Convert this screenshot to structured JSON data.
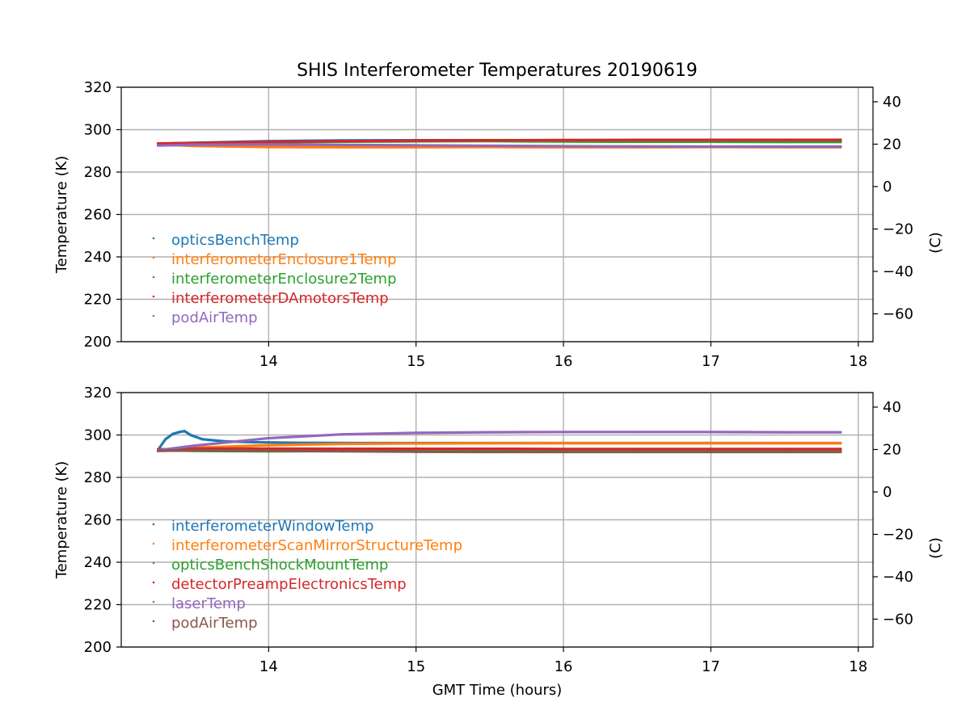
{
  "figure_title": "SHIS Interferometer Temperatures 20190619",
  "chart_data": [
    {
      "type": "scatter",
      "ylabel": "Temperature (K)",
      "right_ylabel": "(C)",
      "xlabel": "",
      "xlim": [
        13.0,
        18.1
      ],
      "ylim": [
        200,
        320
      ],
      "x_ticks": [
        14,
        15,
        16,
        17,
        18
      ],
      "y_ticks": [
        200,
        220,
        240,
        260,
        280,
        300,
        320
      ],
      "right_ticks": [
        -60,
        -40,
        -20,
        0,
        20,
        40
      ],
      "grid": true,
      "legend_position": "center-left",
      "series": [
        {
          "name": "opticsBenchTemp",
          "color": "#1f77b4",
          "x": [
            13.25,
            13.5,
            14.0,
            14.5,
            15.0,
            15.5,
            16.0,
            16.5,
            17.0,
            17.5,
            17.88
          ],
          "y": [
            293.4,
            293.8,
            294.6,
            294.9,
            295.0,
            295.0,
            294.9,
            294.8,
            294.8,
            294.7,
            294.7
          ]
        },
        {
          "name": "interferometerEnclosure1Temp",
          "color": "#ff7f0e",
          "x": [
            13.25,
            13.5,
            14.0,
            14.5,
            15.0,
            15.5,
            16.0,
            16.5,
            17.0,
            17.5,
            17.88
          ],
          "y": [
            293.0,
            292.3,
            291.8,
            291.7,
            291.7,
            291.8,
            291.7,
            291.7,
            291.8,
            291.7,
            291.7
          ]
        },
        {
          "name": "interferometerEnclosure2Temp",
          "color": "#2ca02c",
          "x": [
            13.25,
            13.5,
            14.0,
            14.5,
            15.0,
            15.5,
            16.0,
            16.5,
            17.0,
            17.5,
            17.88
          ],
          "y": [
            293.2,
            293.5,
            294.0,
            294.3,
            294.5,
            294.6,
            294.4,
            294.3,
            294.3,
            294.2,
            294.2
          ]
        },
        {
          "name": "interferometerDAmotorsTemp",
          "color": "#d62728",
          "x": [
            13.25,
            13.5,
            14.0,
            14.5,
            15.0,
            15.5,
            16.0,
            16.5,
            17.0,
            17.5,
            17.88
          ],
          "y": [
            293.5,
            293.7,
            294.2,
            294.6,
            294.8,
            295.0,
            295.1,
            295.2,
            295.2,
            295.2,
            295.2
          ]
        },
        {
          "name": "podAirTemp",
          "color": "#9467bd",
          "x": [
            13.25,
            13.5,
            14.0,
            14.5,
            15.0,
            15.5,
            16.0,
            16.5,
            17.0,
            17.5,
            17.88
          ],
          "y": [
            292.5,
            292.9,
            293.0,
            292.8,
            292.6,
            292.4,
            292.2,
            292.1,
            292.0,
            292.0,
            292.0
          ]
        }
      ]
    },
    {
      "type": "scatter",
      "ylabel": "Temperature (K)",
      "right_ylabel": "(C)",
      "xlabel": "GMT Time (hours)",
      "xlim": [
        13.0,
        18.1
      ],
      "ylim": [
        200,
        320
      ],
      "x_ticks": [
        14,
        15,
        16,
        17,
        18
      ],
      "y_ticks": [
        200,
        220,
        240,
        260,
        280,
        300,
        320
      ],
      "right_ticks": [
        -60,
        -40,
        -20,
        0,
        20,
        40
      ],
      "grid": true,
      "legend_position": "center-left",
      "series": [
        {
          "name": "interferometerWindowTemp",
          "color": "#1f77b4",
          "x": [
            13.25,
            13.3,
            13.35,
            13.4,
            13.43,
            13.47,
            13.55,
            13.7,
            13.9,
            14.2,
            14.6,
            15.0,
            15.5,
            16.0,
            16.5,
            17.0,
            17.5,
            17.88
          ],
          "y": [
            293.0,
            298.0,
            300.5,
            301.5,
            301.8,
            300.0,
            298.0,
            297.0,
            296.6,
            296.3,
            296.2,
            296.2,
            296.2,
            296.2,
            296.2,
            296.2,
            296.2,
            296.2
          ]
        },
        {
          "name": "interferometerScanMirrorStructureTemp",
          "color": "#ff7f0e",
          "x": [
            13.25,
            13.5,
            14.0,
            14.5,
            15.0,
            15.5,
            16.0,
            16.5,
            17.0,
            17.5,
            17.88
          ],
          "y": [
            293.0,
            294.0,
            295.2,
            295.8,
            296.0,
            296.1,
            296.1,
            296.1,
            296.1,
            296.1,
            296.1
          ]
        },
        {
          "name": "opticsBenchShockMountTemp",
          "color": "#2ca02c",
          "x": [
            13.25,
            13.5,
            14.0,
            14.5,
            15.0,
            15.5,
            16.0,
            16.5,
            17.0,
            17.5,
            17.88
          ],
          "y": [
            292.8,
            292.5,
            292.3,
            292.4,
            292.5,
            292.6,
            292.6,
            292.6,
            292.6,
            292.6,
            292.6
          ]
        },
        {
          "name": "detectorPreampElectronicsTemp",
          "color": "#d62728",
          "x": [
            13.25,
            13.5,
            14.0,
            14.5,
            15.0,
            15.5,
            16.0,
            16.5,
            17.0,
            17.5,
            17.88
          ],
          "y": [
            293.2,
            293.6,
            293.6,
            293.5,
            293.5,
            293.5,
            293.4,
            293.4,
            293.4,
            293.4,
            293.4
          ]
        },
        {
          "name": "laserTemp",
          "color": "#9467bd",
          "x": [
            13.25,
            13.5,
            14.0,
            14.5,
            15.0,
            15.5,
            16.0,
            16.5,
            17.0,
            17.5,
            17.88
          ],
          "y": [
            292.8,
            295.0,
            298.5,
            300.3,
            301.0,
            301.3,
            301.4,
            301.4,
            301.4,
            301.3,
            301.3
          ]
        },
        {
          "name": "podAirTemp",
          "color": "#8c564b",
          "x": [
            13.25,
            13.5,
            14.0,
            14.5,
            15.0,
            15.5,
            16.0,
            16.5,
            17.0,
            17.5,
            17.88
          ],
          "y": [
            292.5,
            292.8,
            292.6,
            292.3,
            292.1,
            292.0,
            292.0,
            292.0,
            292.0,
            292.0,
            292.0
          ]
        }
      ]
    }
  ]
}
